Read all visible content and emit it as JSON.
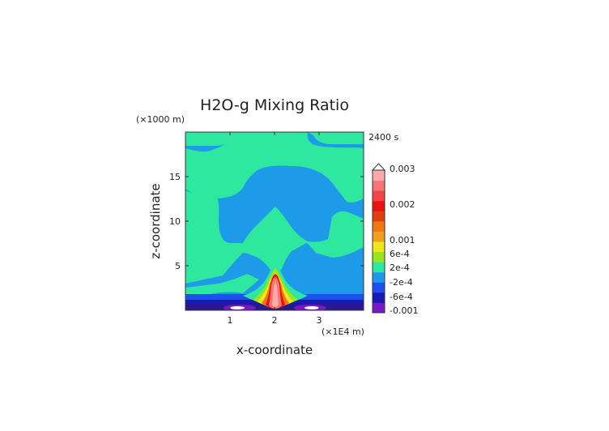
{
  "chart_data": {
    "type": "heatmap",
    "title": "H2O-g Mixing Ratio",
    "xlabel": "x-coordinate",
    "ylabel": "z-coordinate",
    "x_unit": "(×1E4 m)",
    "y_unit": "(×1000 m)",
    "time_label": "2400 s",
    "xlim": [
      0,
      4
    ],
    "ylim": [
      0,
      20
    ],
    "x_ticks": [
      "1",
      "2",
      "3"
    ],
    "x_tick_values": [
      1,
      2,
      3
    ],
    "y_ticks": [
      "5",
      "10",
      "15"
    ],
    "y_tick_values": [
      5,
      10,
      15
    ],
    "grid": false,
    "legend_position": "right",
    "colorbar": {
      "labels": [
        "0.003",
        "0.002",
        "0.001",
        "6e-4",
        "2e-4",
        "-2e-4",
        "-6e-4",
        "-0.001"
      ],
      "label_levels": [
        0.003,
        0.002,
        0.001,
        0.0006,
        0.0002,
        -0.0002,
        -0.0006,
        -0.001
      ],
      "colors": [
        "#7a18c8",
        "#1a1ab0",
        "#1e50f0",
        "#1e9be8",
        "#2ee8a0",
        "#9ae61e",
        "#f0e61e",
        "#f0a01e",
        "#f07810",
        "#e04010",
        "#e81414",
        "#f24646",
        "#f77474",
        "#ffaaaa"
      ]
    },
    "fields": {
      "background": "#1e9be8",
      "upper_field": "#2ee8a0"
    }
  }
}
